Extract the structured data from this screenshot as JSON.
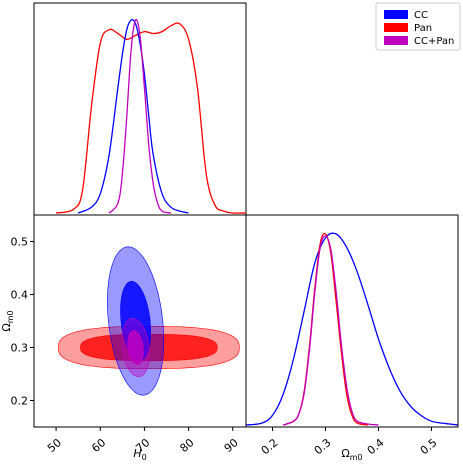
{
  "chart_data": {
    "type": "corner",
    "colors": {
      "CC": "#0000ff",
      "Pan": "#ff0000",
      "CC+Pan": "#bf00bf"
    },
    "legend": {
      "placement": "top-right",
      "entries": [
        {
          "label": "CC",
          "color": "#0000ff"
        },
        {
          "label": "Pan",
          "color": "#ff0000"
        },
        {
          "label": "CC+Pan",
          "color": "#bf00bf"
        }
      ]
    },
    "axes": {
      "H0": {
        "label_main": "H",
        "label_sub": "0",
        "range": [
          45,
          93
        ],
        "ticks": [
          "50",
          "60",
          "70",
          "80",
          "90"
        ],
        "tick_values": [
          50,
          60,
          70,
          80,
          90
        ]
      },
      "Om": {
        "label_main": "Ω",
        "label_sub": "m0",
        "range": [
          0.15,
          0.55
        ],
        "ticks": [
          "0.2",
          "0.3",
          "0.4",
          "0.5"
        ],
        "tick_values": [
          0.2,
          0.3,
          0.4,
          0.5
        ]
      }
    },
    "h0_posteriors": [
      {
        "name": "Pan",
        "color": "#ff0000",
        "x": [
          50,
          54,
          56,
          58,
          60,
          62,
          64,
          66,
          68,
          70,
          72,
          74,
          76,
          78,
          80,
          82,
          84,
          86,
          88,
          90,
          93
        ],
        "y": [
          0.0,
          0.02,
          0.12,
          0.55,
          0.88,
          0.95,
          0.93,
          0.9,
          0.92,
          0.94,
          0.93,
          0.94,
          0.97,
          0.98,
          0.9,
          0.65,
          0.2,
          0.04,
          0.01,
          0.0,
          0.0
        ]
      },
      {
        "name": "CC",
        "color": "#0000ff",
        "x": [
          55,
          58,
          60,
          62,
          64,
          65,
          66,
          67,
          68,
          69,
          70,
          71,
          72,
          74,
          76,
          78,
          80
        ],
        "y": [
          0.0,
          0.03,
          0.1,
          0.3,
          0.65,
          0.82,
          0.95,
          1.0,
          0.98,
          0.88,
          0.72,
          0.5,
          0.3,
          0.1,
          0.03,
          0.01,
          0.0
        ]
      },
      {
        "name": "CC+Pan",
        "color": "#bf00bf",
        "x": [
          62,
          64,
          65,
          66,
          67,
          68,
          69,
          70,
          71,
          72,
          73,
          74,
          76
        ],
        "y": [
          0.0,
          0.05,
          0.2,
          0.5,
          0.85,
          1.0,
          0.92,
          0.65,
          0.35,
          0.15,
          0.05,
          0.01,
          0.0
        ]
      }
    ],
    "om_posteriors": [
      {
        "name": "CC",
        "color": "#0000ff",
        "x": [
          0.15,
          0.18,
          0.2,
          0.22,
          0.24,
          0.26,
          0.28,
          0.3,
          0.32,
          0.34,
          0.36,
          0.38,
          0.4,
          0.42,
          0.44,
          0.46,
          0.48,
          0.5,
          0.52,
          0.55
        ],
        "y": [
          0.0,
          0.01,
          0.05,
          0.16,
          0.35,
          0.6,
          0.85,
          0.98,
          1.0,
          0.93,
          0.8,
          0.63,
          0.45,
          0.3,
          0.18,
          0.1,
          0.05,
          0.02,
          0.01,
          0.0
        ]
      },
      {
        "name": "Pan",
        "color": "#ff0000",
        "x": [
          0.22,
          0.24,
          0.25,
          0.26,
          0.27,
          0.28,
          0.29,
          0.3,
          0.31,
          0.32,
          0.33,
          0.34,
          0.35,
          0.36,
          0.38
        ],
        "y": [
          0.0,
          0.02,
          0.06,
          0.18,
          0.42,
          0.72,
          0.95,
          1.0,
          0.9,
          0.65,
          0.38,
          0.16,
          0.05,
          0.01,
          0.0
        ]
      },
      {
        "name": "CC+Pan",
        "color": "#bf00bf",
        "x": [
          0.22,
          0.24,
          0.25,
          0.26,
          0.27,
          0.28,
          0.29,
          0.3,
          0.31,
          0.32,
          0.33,
          0.34,
          0.35,
          0.36,
          0.38,
          0.4
        ],
        "y": [
          0.0,
          0.02,
          0.06,
          0.17,
          0.4,
          0.7,
          0.93,
          0.99,
          0.92,
          0.7,
          0.42,
          0.2,
          0.07,
          0.02,
          0.005,
          0.0
        ]
      }
    ],
    "contours": [
      {
        "name": "Pan",
        "level": "2sigma",
        "color": "#ff0000",
        "opacity": 0.38,
        "cx": 71,
        "cy": 0.3,
        "rx": 20.5,
        "ry": 0.04,
        "corner": 0.75,
        "angle_deg": 0
      },
      {
        "name": "Pan",
        "level": "1sigma",
        "color": "#ff0000",
        "opacity": 0.8,
        "cx": 71,
        "cy": 0.3,
        "rx": 15.5,
        "ry": 0.025,
        "corner": 0.75,
        "angle_deg": 0
      },
      {
        "name": "CC",
        "level": "2sigma",
        "color": "#0000ff",
        "opacity": 0.4,
        "cx": 68,
        "cy": 0.35,
        "rx": 0.14,
        "ry": 0.028,
        "slope": -0.01,
        "type": "tilted"
      },
      {
        "name": "CC",
        "level": "1sigma",
        "color": "#0000ff",
        "opacity": 0.85,
        "cx": 68,
        "cy": 0.35,
        "rx": 0.075,
        "ry": 0.015,
        "slope": -0.01,
        "type": "tilted"
      },
      {
        "name": "CC+Pan",
        "level": "2sigma",
        "color": "#bf00bf",
        "opacity": 0.4,
        "cx": 68,
        "cy": 0.3,
        "rx": 0.055,
        "ry": 0.014,
        "slope": -0.01,
        "type": "tilted"
      },
      {
        "name": "CC+Pan",
        "level": "1sigma",
        "color": "#bf00bf",
        "opacity": 0.85,
        "cx": 68,
        "cy": 0.3,
        "rx": 0.032,
        "ry": 0.008,
        "slope": -0.01,
        "type": "tilted"
      }
    ]
  }
}
